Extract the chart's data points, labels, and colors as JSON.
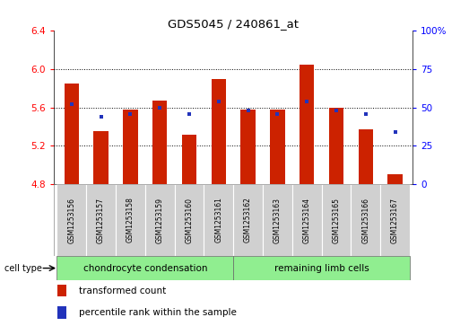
{
  "title": "GDS5045 / 240861_at",
  "samples": [
    "GSM1253156",
    "GSM1253157",
    "GSM1253158",
    "GSM1253159",
    "GSM1253160",
    "GSM1253161",
    "GSM1253162",
    "GSM1253163",
    "GSM1253164",
    "GSM1253165",
    "GSM1253166",
    "GSM1253167"
  ],
  "red_values": [
    5.85,
    5.35,
    5.58,
    5.67,
    5.32,
    5.9,
    5.58,
    5.58,
    6.05,
    5.6,
    5.37,
    4.9
  ],
  "blue_values": [
    52,
    44,
    46,
    50,
    46,
    54,
    48,
    46,
    54,
    48,
    46,
    34
  ],
  "ylim_left": [
    4.8,
    6.4
  ],
  "ylim_right": [
    0,
    100
  ],
  "yticks_left": [
    4.8,
    5.2,
    5.6,
    6.0,
    6.4
  ],
  "yticks_right": [
    0,
    25,
    50,
    75,
    100
  ],
  "grid_values": [
    5.2,
    5.6,
    6.0
  ],
  "bar_bottom": 4.8,
  "bar_color": "#cc2200",
  "blue_color": "#2233bb",
  "group1_label": "chondrocyte condensation",
  "group2_label": "remaining limb cells",
  "group1_indices": [
    0,
    1,
    2,
    3,
    4,
    5
  ],
  "group2_indices": [
    6,
    7,
    8,
    9,
    10,
    11
  ],
  "cell_type_label": "cell type",
  "legend1": "transformed count",
  "legend2": "percentile rank within the sample",
  "bar_width": 0.5,
  "label_bg": "#d0d0d0",
  "group_bg": "#90ee90",
  "fig_bg": "#ffffff"
}
